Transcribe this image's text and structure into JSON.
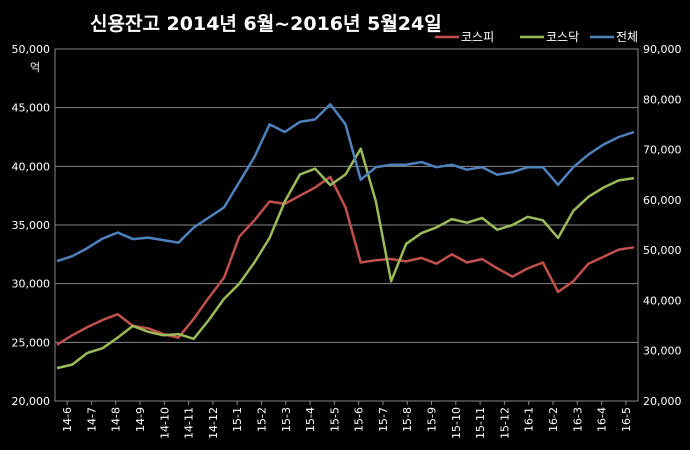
{
  "chart_data": {
    "type": "line",
    "title": "신용잔고 2014년 6월~2016년 5월24일",
    "ylabel_left": "억",
    "left_axis": {
      "ylim": [
        20000,
        50000
      ],
      "ticks": [
        "20,000",
        "25,000",
        "30,000",
        "35,000",
        "40,000",
        "45,000",
        "50,000"
      ]
    },
    "right_axis": {
      "ylim": [
        20000,
        90000
      ],
      "ticks": [
        "20,000",
        "30,000",
        "40,000",
        "50,000",
        "60,000",
        "70,000",
        "80,000",
        "90,000"
      ]
    },
    "x_labels": [
      "14-6",
      "14-7",
      "14-8",
      "14-9",
      "14-10",
      "14-11",
      "14-12",
      "15-1",
      "15-2",
      "15-3",
      "15-4",
      "15-5",
      "15-6",
      "15-7",
      "15-8",
      "15-9",
      "15-10",
      "15-11",
      "15-12",
      "16-1",
      "16-2",
      "16-3",
      "16-4",
      "16-5"
    ],
    "grid": true,
    "legend_position": "top-right",
    "series": [
      {
        "name": "코스피",
        "axis": "left",
        "color": "#c0504d",
        "values": [
          24800,
          25600,
          26300,
          26900,
          27400,
          26400,
          26200,
          25700,
          25400,
          27000,
          28800,
          30500,
          34000,
          35400,
          37000,
          36800,
          37500,
          38200,
          39100,
          36500,
          31800,
          32000,
          32100,
          31900,
          32200,
          31700,
          32500,
          31800,
          32100,
          31300,
          30600,
          31300,
          31800,
          29300,
          30200,
          31700,
          32300,
          32900,
          33100
        ]
      },
      {
        "name": "코스닥",
        "axis": "left",
        "color": "#9bbb59",
        "values": [
          22800,
          23100,
          24100,
          24500,
          25400,
          26400,
          25900,
          25600,
          25700,
          25300,
          26900,
          28700,
          30000,
          31800,
          33900,
          37000,
          39300,
          39800,
          38400,
          39300,
          41500,
          37000,
          30200,
          33400,
          34300,
          34800,
          35500,
          35200,
          35600,
          34600,
          35000,
          35700,
          35400,
          33900,
          36200,
          37400,
          38200,
          38800,
          39000
        ]
      },
      {
        "name": "전체",
        "axis": "right",
        "color": "#4f81bd",
        "values": [
          47800,
          48800,
          50400,
          52300,
          53500,
          52200,
          52500,
          52000,
          51500,
          54500,
          56500,
          58500,
          63500,
          68500,
          75000,
          73500,
          75500,
          76000,
          79000,
          75000,
          64000,
          66500,
          67000,
          67000,
          67500,
          66500,
          67000,
          66000,
          66500,
          65000,
          65500,
          66500,
          66500,
          63000,
          66500,
          69000,
          71000,
          72500,
          73500
        ]
      }
    ]
  }
}
